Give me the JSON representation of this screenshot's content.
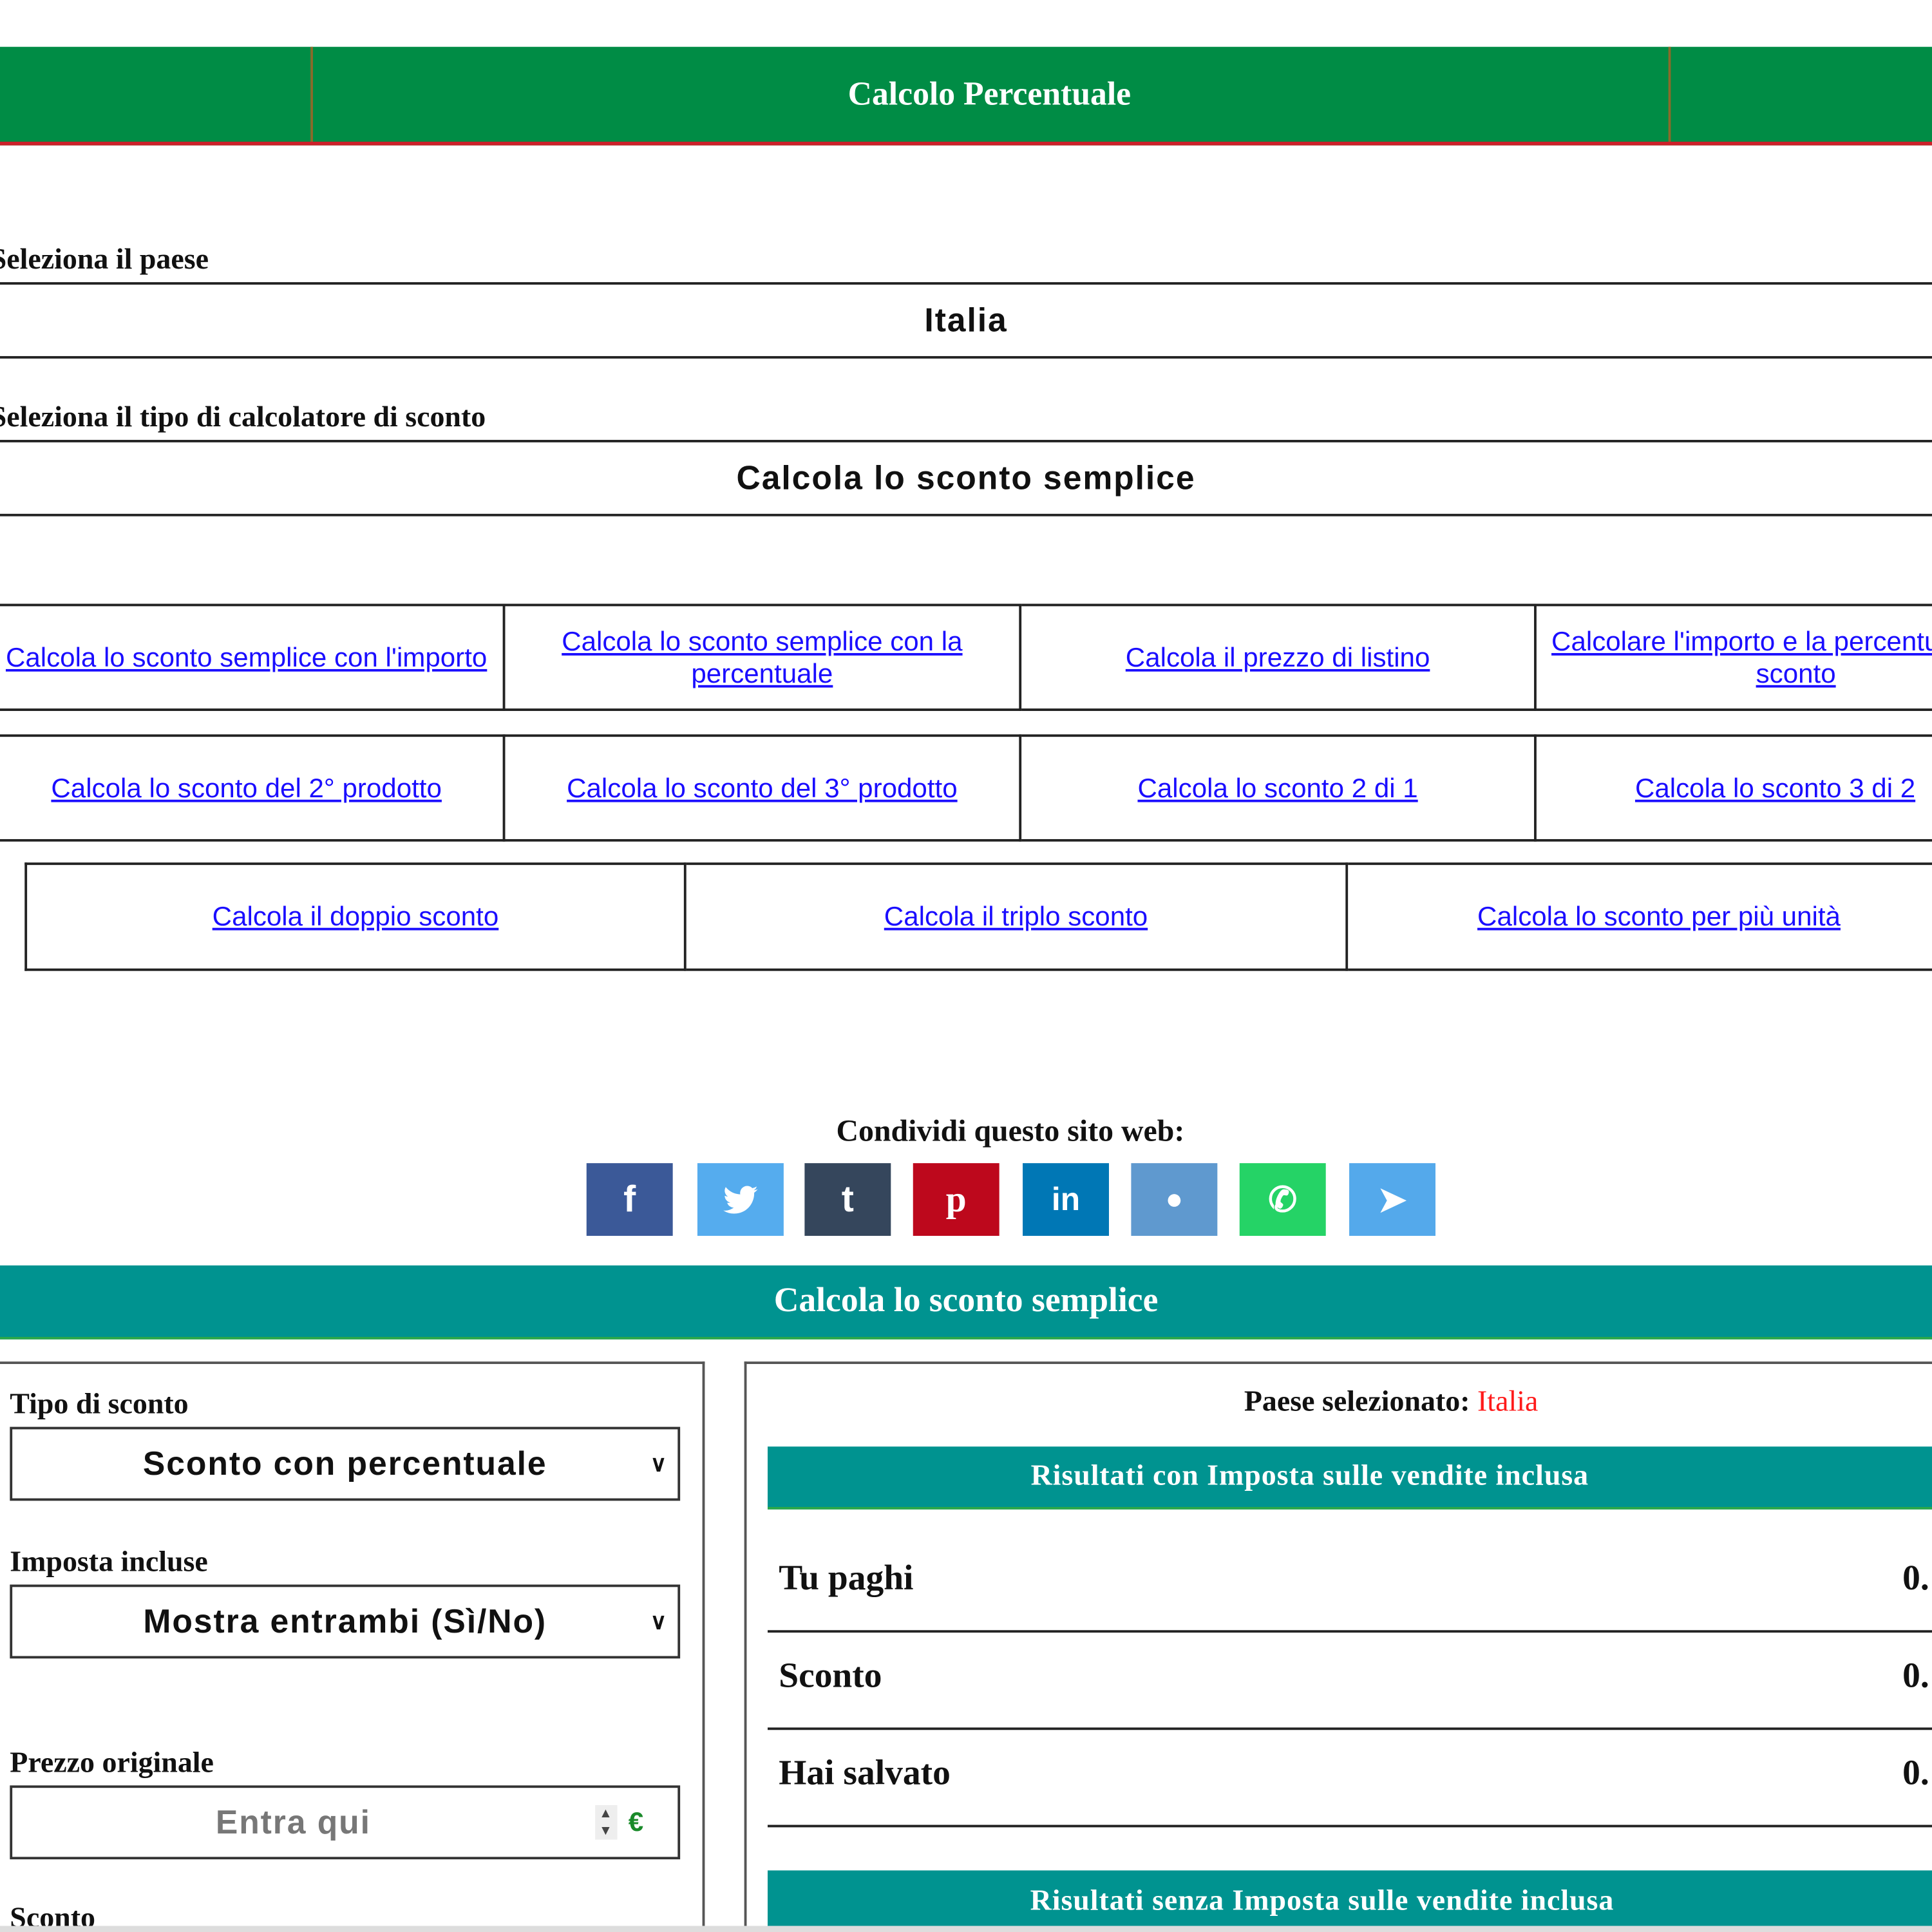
{
  "header": {
    "title": "Calcolo Percentuale"
  },
  "country": {
    "label": "Seleziona il paese",
    "value": "Italia"
  },
  "calc_type": {
    "label": "Seleziona il tipo di calcolatore di sconto",
    "value": "Calcola lo sconto semplice"
  },
  "links": {
    "row1": [
      "Calcola lo sconto semplice con l'importo",
      "Calcola lo sconto semplice con la percentuale",
      "Calcola il prezzo di listino",
      "Calcolare l'importo e la percentuale dello sconto"
    ],
    "row2": [
      "Calcola lo sconto del 2° prodotto",
      "Calcola lo sconto del 3° prodotto",
      "Calcola lo sconto 2 di 1",
      "Calcola lo sconto 3 di 2"
    ],
    "row3": [
      "Calcola il doppio sconto",
      "Calcola il triplo sconto",
      "Calcola lo sconto per più unità"
    ]
  },
  "share": {
    "label": "Condividi questo sito web:",
    "buttons": [
      {
        "icon": "facebook-icon",
        "glyph": "f",
        "color": "#3b5998"
      },
      {
        "icon": "twitter-icon",
        "glyph": "🐦",
        "color": "#55acee"
      },
      {
        "icon": "tumblr-icon",
        "glyph": "t",
        "color": "#35465c"
      },
      {
        "icon": "pinterest-icon",
        "glyph": "p",
        "color": "#bd081c"
      },
      {
        "icon": "linkedin-icon",
        "glyph": "in",
        "color": "#0077b5"
      },
      {
        "icon": "reddit-icon",
        "glyph": "●",
        "color": "#5f99cf"
      },
      {
        "icon": "whatsapp-icon",
        "glyph": "✆",
        "color": "#25d366"
      },
      {
        "icon": "telegram-icon",
        "glyph": "➤",
        "color": "#54a9eb"
      }
    ]
  },
  "calculator": {
    "title": "Calcola lo sconto semplice",
    "discount_type": {
      "label": "Tipo di sconto",
      "value": "Sconto con percentuale"
    },
    "tax": {
      "label": "Imposta incluse",
      "value": "Mostra entrambi (Sì/No)"
    },
    "price": {
      "label": "Prezzo originale",
      "placeholder": "Entra qui",
      "currency": "€"
    },
    "discount_label": "Sconto"
  },
  "results": {
    "country_label": "Paese selezionato:",
    "country_value": "Italia",
    "with_tax_title": "Risultati con Imposta sulle vendite inclusa",
    "rows": [
      {
        "label": "Tu paghi",
        "value": "0."
      },
      {
        "label": "Sconto",
        "value": "0."
      },
      {
        "label": "Hai salvato",
        "value": "0."
      }
    ],
    "without_tax_title": "Risultati senza Imposta sulle vendite inclusa"
  },
  "colors": {
    "header": "#008c45",
    "header_border": "#cd212a",
    "teal": "#009390",
    "link": "#1a0dff",
    "accent_red": "#ff1a1a"
  }
}
